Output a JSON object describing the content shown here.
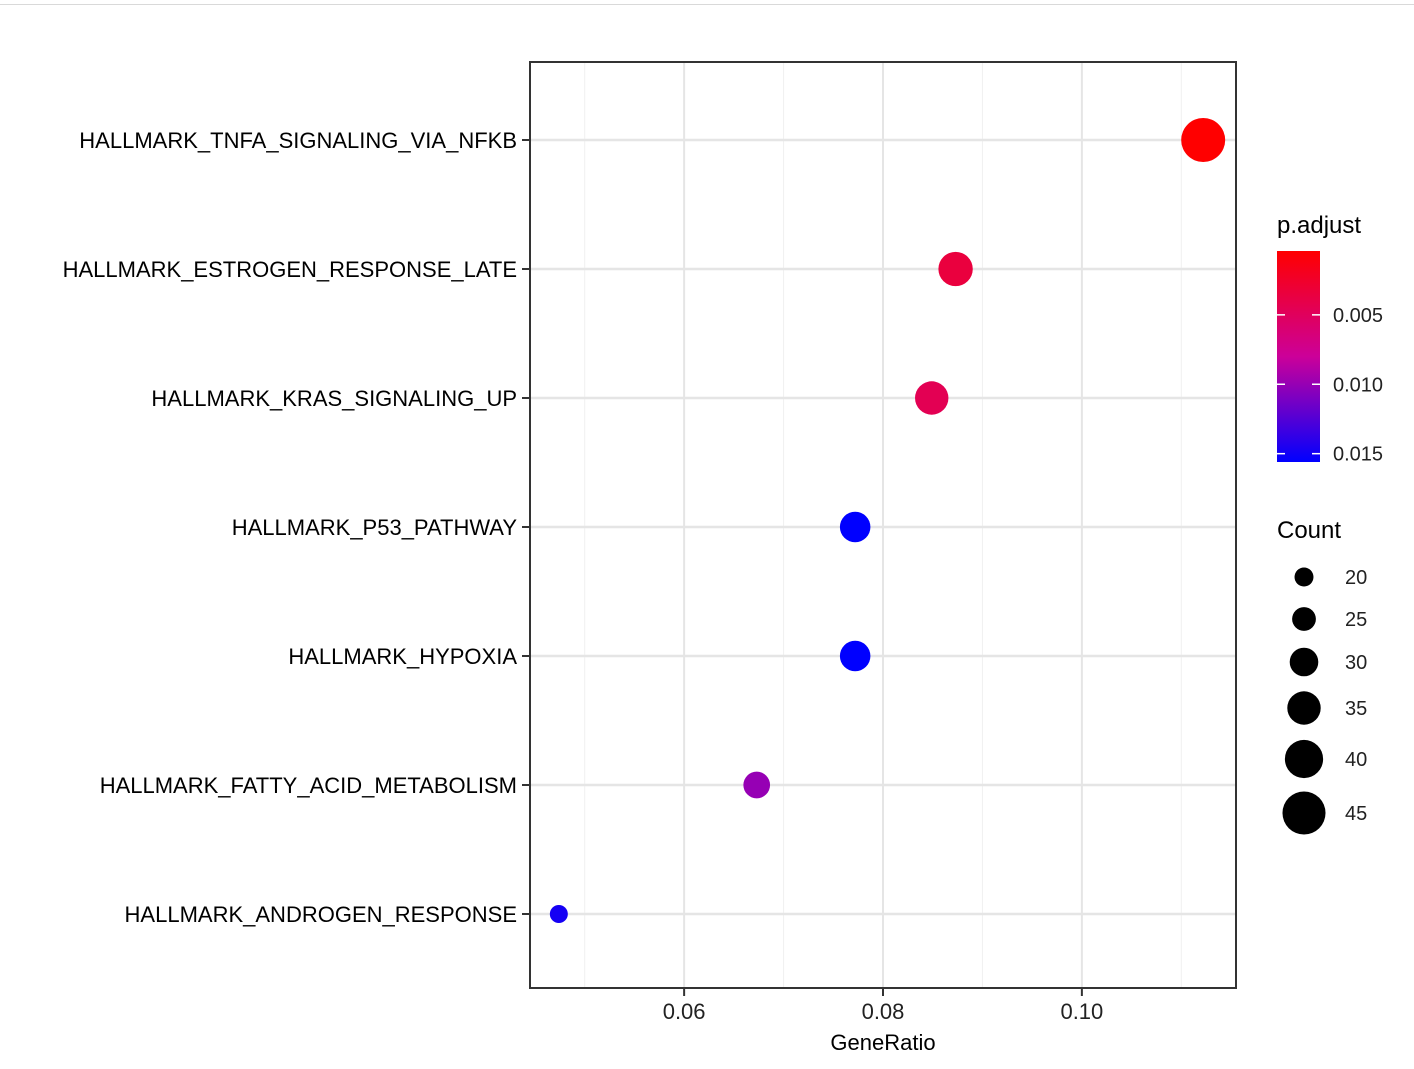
{
  "chart_data": {
    "type": "scatter",
    "title": "",
    "xlabel": "GeneRatio",
    "ylabel": "",
    "xlim": [
      0.0445,
      0.1155
    ],
    "x_ticks": [
      0.06,
      0.08,
      0.1
    ],
    "x_tick_labels": [
      "0.06",
      "0.08",
      "0.10"
    ],
    "grid": true,
    "categories": [
      "HALLMARK_TNFA_SIGNALING_VIA_NFKB",
      "HALLMARK_ESTROGEN_RESPONSE_LATE",
      "HALLMARK_KRAS_SIGNALING_UP",
      "HALLMARK_P53_PATHWAY",
      "HALLMARK_HYPOXIA",
      "HALLMARK_FATTY_ACID_METABOLISM",
      "HALLMARK_ANDROGEN_RESPONSE"
    ],
    "points": [
      {
        "term": "HALLMARK_TNFA_SIGNALING_VIA_NFKB",
        "gene_ratio": 0.1122,
        "count": 46,
        "p_adjust": 0.0004
      },
      {
        "term": "HALLMARK_ESTROGEN_RESPONSE_LATE",
        "gene_ratio": 0.0873,
        "count": 36,
        "p_adjust": 0.0035
      },
      {
        "term": "HALLMARK_KRAS_SIGNALING_UP",
        "gene_ratio": 0.0849,
        "count": 35,
        "p_adjust": 0.0045
      },
      {
        "term": "HALLMARK_P53_PATHWAY",
        "gene_ratio": 0.0772,
        "count": 32,
        "p_adjust": 0.0156
      },
      {
        "term": "HALLMARK_HYPOXIA",
        "gene_ratio": 0.0772,
        "count": 32,
        "p_adjust": 0.0156
      },
      {
        "term": "HALLMARK_FATTY_ACID_METABOLISM",
        "gene_ratio": 0.0673,
        "count": 28,
        "p_adjust": 0.01
      },
      {
        "term": "HALLMARK_ANDROGEN_RESPONSE",
        "gene_ratio": 0.0474,
        "count": 19,
        "p_adjust": 0.0148
      }
    ],
    "color_legend": {
      "title": "p.adjust",
      "range": [
        0.0004,
        0.0156
      ],
      "ticks": [
        0.005,
        0.01,
        0.015
      ],
      "tick_labels": [
        "0.005",
        "0.010",
        "0.015"
      ],
      "low_color": "#ff0000",
      "high_color": "#0000ff"
    },
    "size_legend": {
      "title": "Count",
      "values": [
        20,
        25,
        30,
        35,
        40,
        45
      ],
      "labels": [
        "20",
        "25",
        "30",
        "35",
        "40",
        "45"
      ],
      "range": [
        19,
        46
      ]
    },
    "legend_position": "right"
  }
}
